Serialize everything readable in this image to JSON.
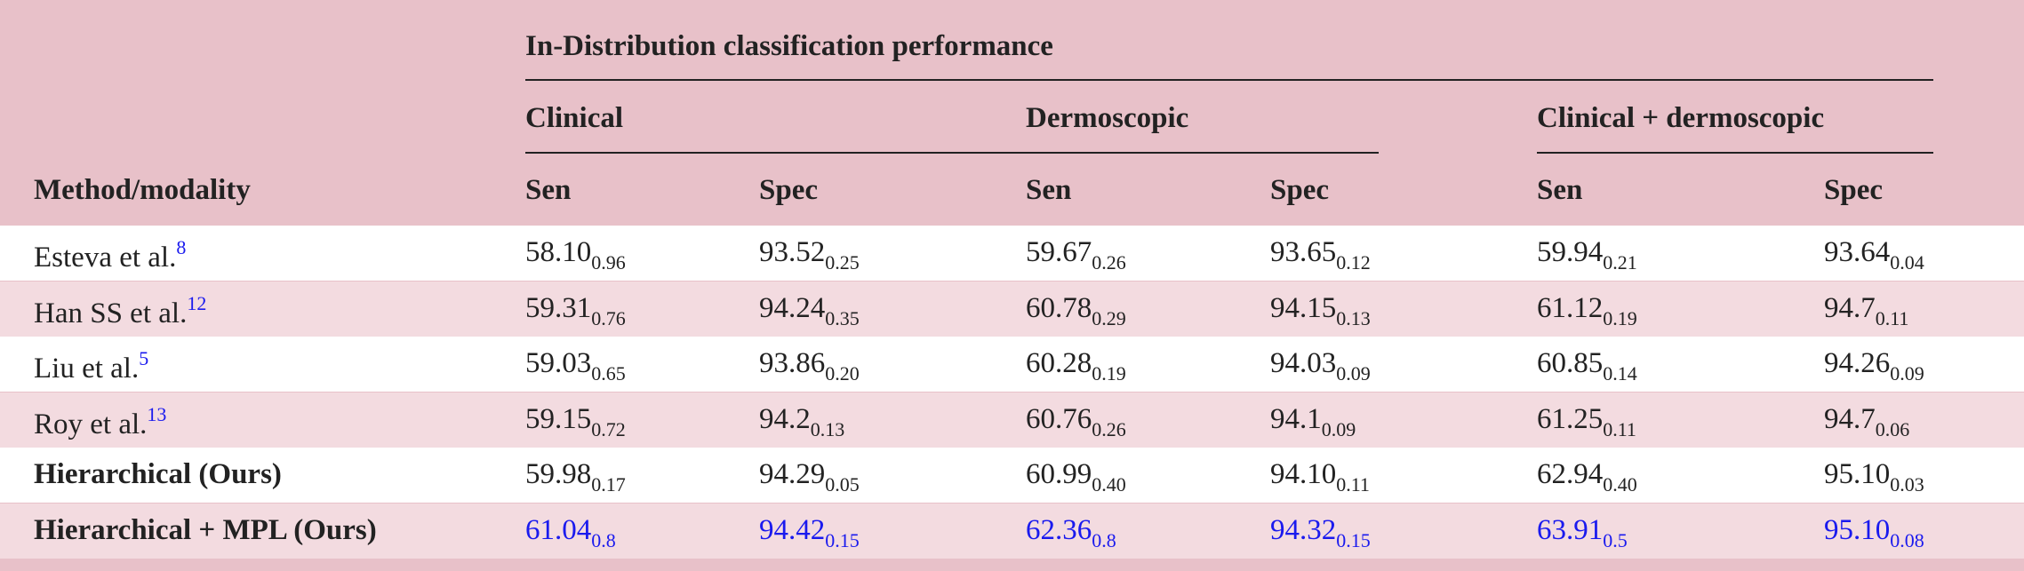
{
  "header": {
    "group": "In-Distribution classification performance",
    "method_label": "Method/modality",
    "modalities": [
      "Clinical",
      "Dermoscopic",
      "Clinical + dermoscopic"
    ],
    "metrics": [
      "Sen",
      "Spec",
      "Sen",
      "Spec",
      "Sen",
      "Spec"
    ]
  },
  "rows": [
    {
      "method": "Esteva et al.",
      "ref": "8",
      "cells": [
        [
          "58.10",
          "0.96"
        ],
        [
          "93.52",
          "0.25"
        ],
        [
          "59.67",
          "0.26"
        ],
        [
          "93.65",
          "0.12"
        ],
        [
          "59.94",
          "0.21"
        ],
        [
          "93.64",
          "0.04"
        ]
      ]
    },
    {
      "method": "Han SS et al.",
      "ref": "12",
      "cells": [
        [
          "59.31",
          "0.76"
        ],
        [
          "94.24",
          "0.35"
        ],
        [
          "60.78",
          "0.29"
        ],
        [
          "94.15",
          "0.13"
        ],
        [
          "61.12",
          "0.19"
        ],
        [
          "94.7",
          "0.11"
        ]
      ]
    },
    {
      "method": "Liu et al.",
      "ref": "5",
      "cells": [
        [
          "59.03",
          "0.65"
        ],
        [
          "93.86",
          "0.20"
        ],
        [
          "60.28",
          "0.19"
        ],
        [
          "94.03",
          "0.09"
        ],
        [
          "60.85",
          "0.14"
        ],
        [
          "94.26",
          "0.09"
        ]
      ]
    },
    {
      "method": "Roy et al.",
      "ref": "13",
      "cells": [
        [
          "59.15",
          "0.72"
        ],
        [
          "94.2",
          "0.13"
        ],
        [
          "60.76",
          "0.26"
        ],
        [
          "94.1",
          "0.09"
        ],
        [
          "61.25",
          "0.11"
        ],
        [
          "94.7",
          "0.06"
        ]
      ]
    },
    {
      "method": "Hierarchical (Ours)",
      "cells": [
        [
          "59.98",
          "0.17"
        ],
        [
          "94.29",
          "0.05"
        ],
        [
          "60.99",
          "0.40"
        ],
        [
          "94.10",
          "0.11"
        ],
        [
          "62.94",
          "0.40"
        ],
        [
          "95.10",
          "0.03"
        ]
      ]
    },
    {
      "method": "Hierarchical + MPL (Ours)",
      "cells": [
        [
          "61.04",
          "0.8"
        ],
        [
          "94.42",
          "0.15"
        ],
        [
          "62.36",
          "0.8"
        ],
        [
          "94.32",
          "0.15"
        ],
        [
          "63.91",
          "0.5"
        ],
        [
          "95.10",
          "0.08"
        ]
      ]
    }
  ]
}
